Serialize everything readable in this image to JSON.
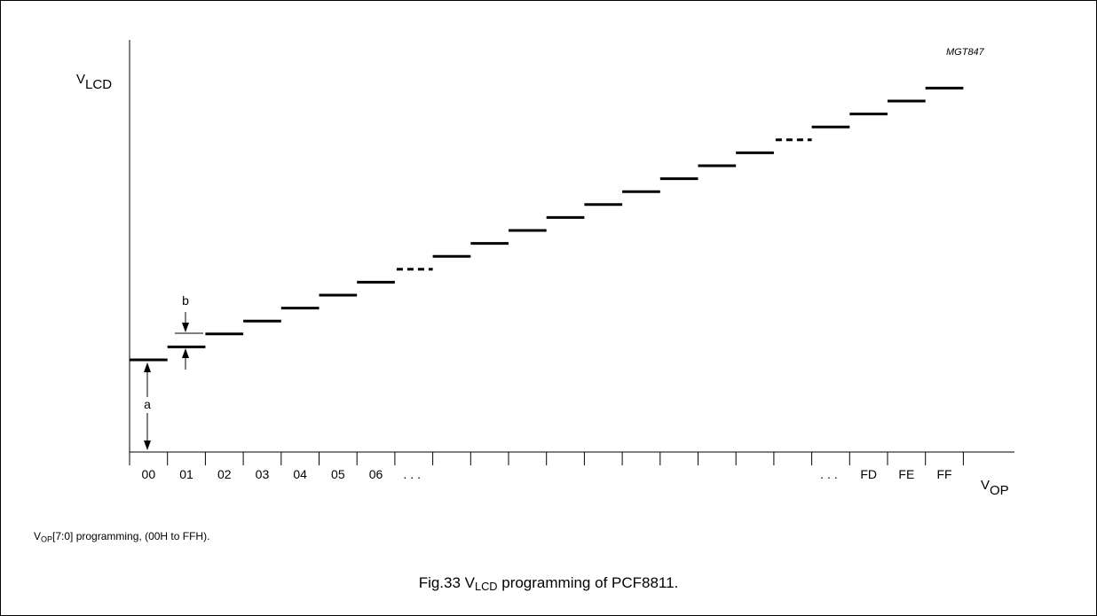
{
  "diagram_code": "MGT847",
  "y_axis": {
    "label_main": "V",
    "label_sub": "LCD"
  },
  "x_axis": {
    "label_main": "V",
    "label_sub": "OP"
  },
  "ellipsis": "...",
  "codes_left": [
    "00",
    "01",
    "02",
    "03",
    "04",
    "05",
    "06"
  ],
  "codes_right": [
    "FD",
    "FE",
    "FF"
  ],
  "annotations": {
    "offset_label": "a",
    "step_label": "b"
  },
  "note": {
    "sub": "OP",
    "text": "[7:0] programming, (00H to FFH)."
  },
  "caption": {
    "prefix": "Fig.33  V",
    "sub": "LCD",
    "suffix": " programming of PCF8811."
  }
}
